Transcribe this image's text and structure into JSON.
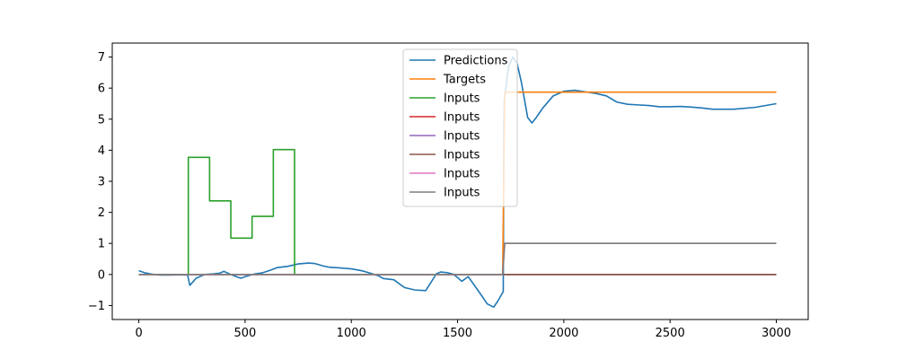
{
  "chart_data": {
    "type": "line",
    "title": "",
    "xlabel": "",
    "ylabel": "",
    "xlim": [
      -125,
      3150
    ],
    "ylim": [
      -1.45,
      7.45
    ],
    "xticks": [
      0,
      500,
      1000,
      1500,
      2000,
      2500,
      3000
    ],
    "yticks": [
      -1,
      0,
      1,
      2,
      3,
      4,
      5,
      6,
      7
    ],
    "grid": false,
    "legend_position": "top-center",
    "series": [
      {
        "name": "Predictions",
        "color": "#1f77b4",
        "step": false,
        "x": [
          0,
          30,
          60,
          100,
          150,
          200,
          230,
          240,
          270,
          310,
          350,
          380,
          400,
          420,
          450,
          480,
          510,
          540,
          580,
          620,
          650,
          700,
          750,
          800,
          830,
          870,
          900,
          950,
          1000,
          1050,
          1100,
          1130,
          1150,
          1200,
          1250,
          1300,
          1350,
          1380,
          1400,
          1420,
          1450,
          1480,
          1500,
          1520,
          1550,
          1600,
          1640,
          1670,
          1690,
          1715,
          1718,
          1720,
          1740,
          1760,
          1780,
          1800,
          1830,
          1850,
          1870,
          1900,
          1950,
          2000,
          2050,
          2100,
          2150,
          2200,
          2250,
          2300,
          2350,
          2400,
          2450,
          2500,
          2550,
          2600,
          2650,
          2700,
          2800,
          2900,
          3000
        ],
        "y": [
          0.12,
          0.05,
          0.01,
          -0.02,
          -0.02,
          -0.01,
          -0.02,
          -0.35,
          -0.12,
          0.0,
          0.02,
          0.04,
          0.1,
          0.04,
          -0.05,
          -0.12,
          -0.05,
          0.01,
          0.05,
          0.14,
          0.22,
          0.26,
          0.34,
          0.37,
          0.35,
          0.27,
          0.23,
          0.21,
          0.18,
          0.12,
          0.02,
          -0.05,
          -0.13,
          -0.17,
          -0.42,
          -0.5,
          -0.52,
          -0.2,
          0.02,
          0.08,
          0.06,
          0.01,
          -0.1,
          -0.22,
          -0.07,
          -0.55,
          -0.95,
          -1.05,
          -0.85,
          -0.55,
          4.8,
          5.6,
          6.7,
          7.0,
          6.8,
          6.2,
          5.05,
          4.88,
          5.05,
          5.35,
          5.75,
          5.9,
          5.93,
          5.88,
          5.83,
          5.75,
          5.55,
          5.48,
          5.46,
          5.44,
          5.4,
          5.4,
          5.41,
          5.39,
          5.36,
          5.32,
          5.32,
          5.38,
          5.5
        ]
      },
      {
        "name": "Targets",
        "color": "#ff7f0e",
        "step": false,
        "x": [
          0,
          1712,
          1722,
          3000
        ],
        "y": [
          0,
          0,
          5.87,
          5.87
        ]
      },
      {
        "name": "Inputs",
        "color": "#2ca02c",
        "step": true,
        "x": [
          0,
          233,
          333,
          433,
          533,
          633,
          733,
          3000
        ],
        "y": [
          0,
          3.77,
          2.37,
          1.17,
          1.87,
          4.02,
          0,
          0
        ]
      },
      {
        "name": "Inputs",
        "color": "#d62728",
        "step": false,
        "x": [
          0,
          3000
        ],
        "y": [
          0,
          0
        ]
      },
      {
        "name": "Inputs",
        "color": "#9467bd",
        "step": false,
        "x": [
          0,
          3000
        ],
        "y": [
          0,
          0
        ]
      },
      {
        "name": "Inputs",
        "color": "#8c564b",
        "step": false,
        "x": [
          0,
          3000
        ],
        "y": [
          0,
          0
        ]
      },
      {
        "name": "Inputs",
        "color": "#e377c2",
        "step": false,
        "x": [
          0,
          1712,
          1722,
          3000
        ],
        "y": [
          0,
          0,
          1,
          1
        ]
      },
      {
        "name": "Inputs",
        "color": "#7f7f7f",
        "step": false,
        "x": [
          0,
          1712,
          1722,
          3000
        ],
        "y": [
          0,
          0,
          1,
          1
        ]
      }
    ]
  }
}
